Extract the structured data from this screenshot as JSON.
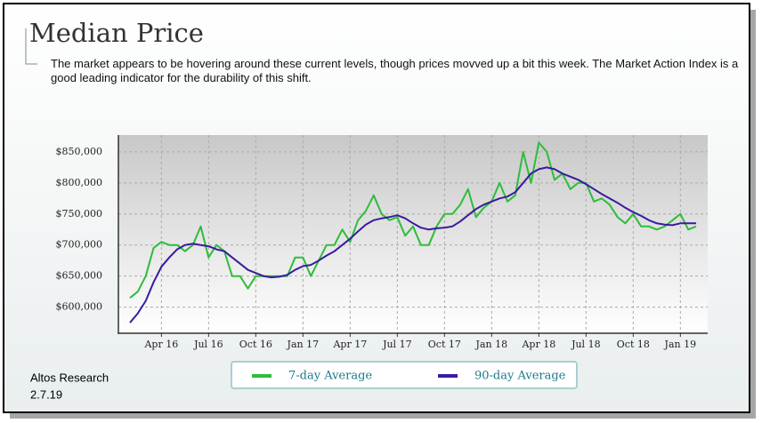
{
  "title": "Median Price",
  "description": "The market appears to be hovering around these current levels, though prices movved up a bit this week. The Market Action Index is a good leading indicator for the durability of this shift.",
  "footer": {
    "source": "Altos Research",
    "date": "2.7.19"
  },
  "chart_data": {
    "type": "line",
    "categories": [
      null,
      null,
      null,
      null,
      "Apr 16",
      null,
      null,
      null,
      null,
      null,
      "Jul 16",
      null,
      null,
      null,
      null,
      null,
      "Oct 16",
      null,
      null,
      null,
      null,
      null,
      "Jan 17",
      null,
      null,
      null,
      null,
      null,
      "Apr 17",
      null,
      null,
      null,
      null,
      null,
      "Jul 17",
      null,
      null,
      null,
      null,
      null,
      "Oct 17",
      null,
      null,
      null,
      null,
      null,
      "Jan 18",
      null,
      null,
      null,
      null,
      null,
      "Apr 18",
      null,
      null,
      null,
      null,
      null,
      "Jul 18",
      null,
      null,
      null,
      null,
      null,
      "Oct 18",
      null,
      null,
      null,
      null,
      null,
      "Jan 19",
      null,
      null
    ],
    "series": [
      {
        "name": "7-day Average",
        "color": "#2ebd3c",
        "values": [
          615000,
          625000,
          650000,
          695000,
          705000,
          700000,
          700000,
          690000,
          700000,
          730000,
          680000,
          700000,
          690000,
          650000,
          650000,
          630000,
          650000,
          650000,
          650000,
          650000,
          650000,
          680000,
          680000,
          650000,
          675000,
          700000,
          700000,
          725000,
          705000,
          740000,
          755000,
          780000,
          750000,
          740000,
          745000,
          715000,
          730000,
          700000,
          700000,
          730000,
          750000,
          750000,
          765000,
          790000,
          745000,
          760000,
          770000,
          800000,
          770000,
          780000,
          850000,
          800000,
          865000,
          850000,
          805000,
          815000,
          790000,
          800000,
          800000,
          770000,
          775000,
          765000,
          745000,
          735000,
          750000,
          730000,
          730000,
          725000,
          730000,
          740000,
          750000,
          725000,
          730000
        ]
      },
      {
        "name": "90-day Average",
        "color": "#3a1aa0",
        "values": [
          575000,
          590000,
          610000,
          640000,
          665000,
          680000,
          693000,
          700000,
          702000,
          700000,
          698000,
          693000,
          690000,
          680000,
          670000,
          660000,
          655000,
          650000,
          648000,
          649000,
          652000,
          660000,
          666000,
          668000,
          675000,
          683000,
          690000,
          700000,
          710000,
          722000,
          733000,
          740000,
          743000,
          745000,
          748000,
          743000,
          735000,
          728000,
          725000,
          727000,
          728000,
          730000,
          738000,
          748000,
          758000,
          765000,
          770000,
          775000,
          778000,
          785000,
          800000,
          815000,
          822000,
          825000,
          822000,
          815000,
          810000,
          805000,
          798000,
          790000,
          782000,
          775000,
          768000,
          760000,
          753000,
          747000,
          740000,
          735000,
          733000,
          732000,
          735000,
          735000,
          735000
        ]
      }
    ],
    "ylim": [
      558000,
      877000
    ],
    "yticks": [
      {
        "value": 600000,
        "label": "$600,000"
      },
      {
        "value": 650000,
        "label": "$650,000"
      },
      {
        "value": 700000,
        "label": "$700,000"
      },
      {
        "value": 750000,
        "label": "$750,000"
      },
      {
        "value": 800000,
        "label": "$800,000"
      },
      {
        "value": 850000,
        "label": "$850,000"
      }
    ],
    "grid": true,
    "legend": "bottom"
  }
}
